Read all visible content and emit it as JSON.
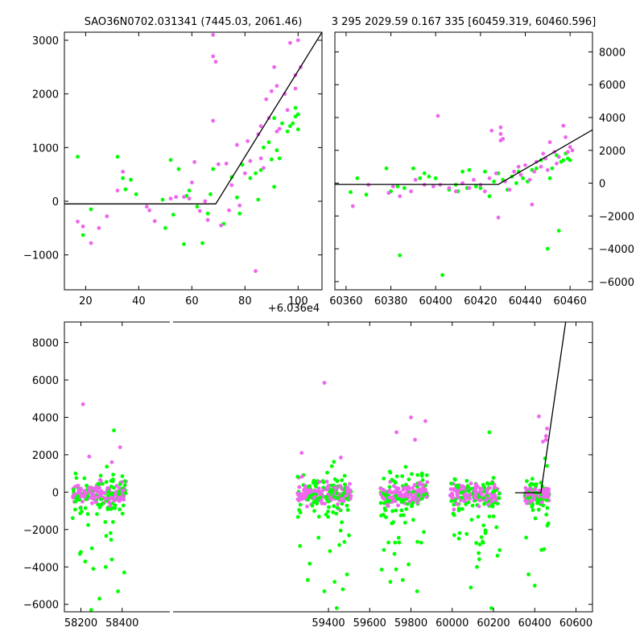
{
  "titles": {
    "left": "SAO36N0702.031341 (7445.03, 2061.46)",
    "right": "3 295 2029.59 0.167 335 [60459.319, 60460.596]"
  },
  "offset_label": "+6.036e4",
  "colors": {
    "green": "#00ff00",
    "magenta": "#ee66ee",
    "line": "#000000"
  },
  "chart_data": [
    {
      "name": "top-left",
      "type": "scatter",
      "xlim": [
        12,
        109
      ],
      "ylim": [
        -1650,
        3150
      ],
      "x_ticks": [
        20,
        40,
        60,
        80,
        100
      ],
      "y_ticks": [
        -1000,
        0,
        1000,
        2000,
        3000
      ],
      "y_tick_side": "left",
      "x_offset": "+6.036e4",
      "grid": false,
      "model_line": [
        [
          12,
          -50
        ],
        [
          69,
          -50
        ],
        [
          109,
          3150
        ]
      ],
      "series": [
        {
          "color": "green",
          "points": [
            [
              17,
              830
            ],
            [
              19,
              -630
            ],
            [
              22,
              -150
            ],
            [
              32,
              830
            ],
            [
              34,
              430
            ],
            [
              35,
              220
            ],
            [
              37,
              400
            ],
            [
              39,
              130
            ],
            [
              49,
              30
            ],
            [
              50,
              -500
            ],
            [
              52,
              770
            ],
            [
              53,
              -250
            ],
            [
              55,
              600
            ],
            [
              57,
              -800
            ],
            [
              58,
              100
            ],
            [
              59,
              200
            ],
            [
              62,
              -100
            ],
            [
              64,
              -780
            ],
            [
              66,
              -230
            ],
            [
              67,
              130
            ],
            [
              68,
              600
            ],
            [
              72,
              -420
            ],
            [
              75,
              450
            ],
            [
              77,
              70
            ],
            [
              78,
              -230
            ],
            [
              79,
              680
            ],
            [
              82,
              430
            ],
            [
              84,
              520
            ],
            [
              85,
              30
            ],
            [
              86,
              580
            ],
            [
              87,
              1000
            ],
            [
              89,
              1100
            ],
            [
              90,
              780
            ],
            [
              91,
              270
            ],
            [
              91,
              1550
            ],
            [
              92,
              950
            ],
            [
              93,
              800
            ],
            [
              94,
              1450
            ],
            [
              96,
              1300
            ],
            [
              97,
              1400
            ],
            [
              98,
              1450
            ],
            [
              99,
              1580
            ],
            [
              99,
              1740
            ],
            [
              100,
              1340
            ],
            [
              100,
              1620
            ]
          ]
        },
        {
          "color": "magenta",
          "points": [
            [
              17,
              -380
            ],
            [
              19,
              -470
            ],
            [
              22,
              -780
            ],
            [
              25,
              -500
            ],
            [
              28,
              -280
            ],
            [
              32,
              200
            ],
            [
              34,
              550
            ],
            [
              43,
              -100
            ],
            [
              44,
              -170
            ],
            [
              46,
              -370
            ],
            [
              52,
              50
            ],
            [
              54,
              80
            ],
            [
              57,
              80
            ],
            [
              59,
              50
            ],
            [
              60,
              350
            ],
            [
              61,
              730
            ],
            [
              63,
              -180
            ],
            [
              65,
              0
            ],
            [
              66,
              -350
            ],
            [
              68,
              1500
            ],
            [
              68,
              3100
            ],
            [
              68,
              2700
            ],
            [
              69,
              2600
            ],
            [
              70,
              690
            ],
            [
              71,
              -450
            ],
            [
              73,
              700
            ],
            [
              74,
              -170
            ],
            [
              75,
              300
            ],
            [
              77,
              1050
            ],
            [
              78,
              -80
            ],
            [
              80,
              520
            ],
            [
              81,
              1120
            ],
            [
              82,
              750
            ],
            [
              84,
              -1300
            ],
            [
              85,
              1250
            ],
            [
              86,
              800
            ],
            [
              86,
              1400
            ],
            [
              87,
              620
            ],
            [
              88,
              1900
            ],
            [
              89,
              1550
            ],
            [
              90,
              2050
            ],
            [
              91,
              2500
            ],
            [
              92,
              1300
            ],
            [
              92,
              2150
            ],
            [
              93,
              1350
            ],
            [
              95,
              2000
            ],
            [
              96,
              1700
            ],
            [
              97,
              2950
            ],
            [
              99,
              2350
            ],
            [
              99,
              2100
            ],
            [
              100,
              3000
            ],
            [
              101,
              2500
            ]
          ]
        }
      ]
    },
    {
      "name": "top-right",
      "type": "scatter",
      "xlim": [
        60355,
        60470
      ],
      "ylim": [
        -6500,
        9200
      ],
      "x_ticks": [
        60360,
        60380,
        60400,
        60420,
        60440,
        60460
      ],
      "y_ticks": [
        -6000,
        -4000,
        -2000,
        0,
        2000,
        4000,
        6000,
        8000
      ],
      "y_tick_side": "right",
      "grid": false,
      "model_line": [
        [
          60355,
          -80
        ],
        [
          60428,
          -80
        ],
        [
          60470,
          3250
        ]
      ],
      "series": [
        {
          "color": "green",
          "points": [
            [
              60362,
              -550
            ],
            [
              60365,
              300
            ],
            [
              60369,
              -700
            ],
            [
              60378,
              900
            ],
            [
              60380,
              -500
            ],
            [
              60383,
              -200
            ],
            [
              60384,
              -4400
            ],
            [
              60386,
              -300
            ],
            [
              60390,
              900
            ],
            [
              60393,
              300
            ],
            [
              60395,
              600
            ],
            [
              60397,
              400
            ],
            [
              60400,
              300
            ],
            [
              60403,
              -5600
            ],
            [
              60406,
              -400
            ],
            [
              60409,
              -100
            ],
            [
              60410,
              -500
            ],
            [
              60412,
              700
            ],
            [
              60414,
              -300
            ],
            [
              60415,
              800
            ],
            [
              60418,
              -200
            ],
            [
              60420,
              -300
            ],
            [
              60422,
              700
            ],
            [
              60424,
              -800
            ],
            [
              60426,
              100
            ],
            [
              60428,
              600
            ],
            [
              60430,
              200
            ],
            [
              60432,
              -400
            ],
            [
              60434,
              400
            ],
            [
              60436,
              0
            ],
            [
              60437,
              700
            ],
            [
              60439,
              300
            ],
            [
              60441,
              100
            ],
            [
              60443,
              800
            ],
            [
              60445,
              900
            ],
            [
              60447,
              1400
            ],
            [
              60449,
              1500
            ],
            [
              60450,
              -4000
            ],
            [
              60451,
              300
            ],
            [
              60452,
              900
            ],
            [
              60454,
              1700
            ],
            [
              60455,
              -2900
            ],
            [
              60456,
              1300
            ],
            [
              60457,
              1400
            ],
            [
              60458,
              1800
            ],
            [
              60459,
              1500
            ],
            [
              60460,
              1400
            ]
          ]
        },
        {
          "color": "magenta",
          "points": [
            [
              60363,
              -1400
            ],
            [
              60370,
              -100
            ],
            [
              60379,
              -600
            ],
            [
              60381,
              -200
            ],
            [
              60384,
              -800
            ],
            [
              60389,
              -500
            ],
            [
              60391,
              200
            ],
            [
              60395,
              -100
            ],
            [
              60399,
              -200
            ],
            [
              60401,
              4100
            ],
            [
              60402,
              -100
            ],
            [
              60406,
              -300
            ],
            [
              60409,
              -500
            ],
            [
              60412,
              0
            ],
            [
              60415,
              -300
            ],
            [
              60417,
              200
            ],
            [
              60420,
              -100
            ],
            [
              60422,
              -500
            ],
            [
              60424,
              300
            ],
            [
              60425,
              3200
            ],
            [
              60427,
              600
            ],
            [
              60428,
              -2100
            ],
            [
              60429,
              3400
            ],
            [
              60429,
              2600
            ],
            [
              60429,
              3000
            ],
            [
              60430,
              2700
            ],
            [
              60431,
              100
            ],
            [
              60433,
              -400
            ],
            [
              60435,
              700
            ],
            [
              60437,
              1000
            ],
            [
              60438,
              500
            ],
            [
              60440,
              1100
            ],
            [
              60442,
              200
            ],
            [
              60443,
              -1300
            ],
            [
              60444,
              700
            ],
            [
              60445,
              1300
            ],
            [
              60447,
              1000
            ],
            [
              60448,
              1800
            ],
            [
              60449,
              1500
            ],
            [
              60450,
              800
            ],
            [
              60451,
              2500
            ],
            [
              60453,
              1900
            ],
            [
              60454,
              1200
            ],
            [
              60455,
              1600
            ],
            [
              60457,
              3500
            ],
            [
              60458,
              2800
            ],
            [
              60459,
              1900
            ],
            [
              60460,
              2200
            ],
            [
              60461,
              2000
            ]
          ]
        }
      ]
    },
    {
      "name": "bottom",
      "type": "scatter",
      "xlim": [
        58120,
        60680
      ],
      "ylim": [
        -6400,
        9100
      ],
      "x_ticks": [
        58200,
        58400,
        59400,
        59600,
        59800,
        60000,
        60200,
        60400,
        60600
      ],
      "y_ticks": [
        -6000,
        -4000,
        -2000,
        0,
        2000,
        4000,
        6000,
        8000
      ],
      "y_tick_side": "left",
      "grid": false,
      "model_line": [
        [
          60305,
          -30
        ],
        [
          60430,
          -30
        ],
        [
          60550,
          9100
        ]
      ],
      "clusters": [
        {
          "x_range": [
            58160,
            58420
          ],
          "spread": 500
        },
        {
          "x_range": [
            59250,
            59510
          ],
          "spread": 500
        },
        {
          "x_range": [
            59650,
            59880
          ],
          "spread": 500
        },
        {
          "x_range": [
            59990,
            60230
          ],
          "spread": 500
        },
        {
          "x_range": [
            60350,
            60470
          ],
          "spread": 400
        }
      ],
      "outliers": [
        {
          "color": "magenta",
          "points": [
            [
              58210,
              4700
            ],
            [
              58390,
              2400
            ],
            [
              58240,
              1900
            ],
            [
              58350,
              1600
            ],
            [
              59380,
              5850
            ],
            [
              59270,
              2100
            ],
            [
              59460,
              1850
            ],
            [
              59730,
              3200
            ],
            [
              59800,
              4000
            ],
            [
              59820,
              2800
            ],
            [
              59870,
              3800
            ],
            [
              60420,
              4050
            ],
            [
              60460,
              3400
            ],
            [
              60455,
              2800
            ],
            [
              60455,
              3000
            ],
            [
              60440,
              2700
            ]
          ]
        },
        {
          "color": "green",
          "points": [
            [
              58195,
              -3300
            ],
            [
              58250,
              -6300
            ],
            [
              58260,
              -4100
            ],
            [
              58290,
              -5700
            ],
            [
              58320,
              -4000
            ],
            [
              58350,
              -3600
            ],
            [
              58380,
              -5300
            ],
            [
              58410,
              -4300
            ],
            [
              58360,
              3300
            ],
            [
              59300,
              -4700
            ],
            [
              59380,
              -5300
            ],
            [
              59430,
              -4800
            ],
            [
              59440,
              -6200
            ],
            [
              59470,
              -5200
            ],
            [
              59490,
              -4400
            ],
            [
              59700,
              -4800
            ],
            [
              59720,
              -3300
            ],
            [
              59760,
              -4700
            ],
            [
              59830,
              -5300
            ],
            [
              59850,
              -2700
            ],
            [
              60010,
              -2300
            ],
            [
              60090,
              -5100
            ],
            [
              60120,
              -4000
            ],
            [
              60150,
              -2700
            ],
            [
              60190,
              -6200
            ],
            [
              60230,
              -3100
            ],
            [
              60180,
              3200
            ],
            [
              60370,
              -4400
            ],
            [
              60400,
              -5000
            ],
            [
              60450,
              1800
            ],
            [
              60460,
              1400
            ]
          ]
        }
      ]
    }
  ]
}
